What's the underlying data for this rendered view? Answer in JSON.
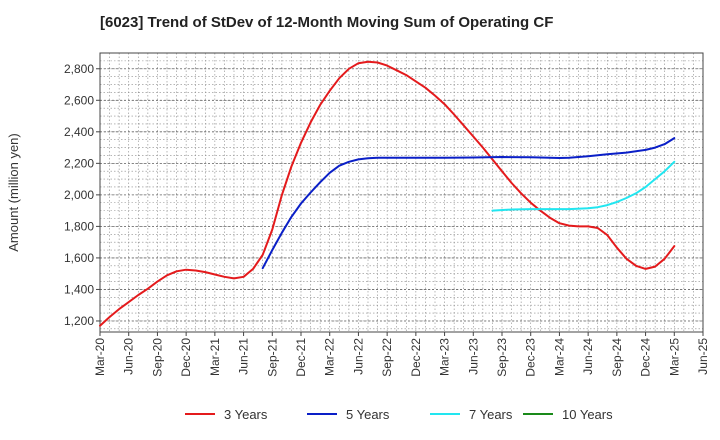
{
  "chart_data": {
    "type": "line",
    "title": "[6023]  Trend of StDev of 12-Month Moving Sum of Operating CF",
    "xlabel": "",
    "ylabel": "Amount (million yen)",
    "ylim": [
      1130,
      2900
    ],
    "yticks": [
      1200,
      1400,
      1600,
      1800,
      2000,
      2200,
      2400,
      2600,
      2800
    ],
    "ytick_labels": [
      "1,200",
      "1,400",
      "1,600",
      "1,800",
      "2,000",
      "2,200",
      "2,400",
      "2,600",
      "2,800"
    ],
    "x_categories": [
      "Mar-20",
      "Jun-20",
      "Sep-20",
      "Dec-20",
      "Mar-21",
      "Jun-21",
      "Sep-21",
      "Dec-21",
      "Mar-22",
      "Jun-22",
      "Sep-22",
      "Dec-22",
      "Mar-23",
      "Jun-23",
      "Sep-23",
      "Dec-23",
      "Mar-24",
      "Jun-24",
      "Sep-24",
      "Dec-24",
      "Mar-25",
      "Jun-25"
    ],
    "grid": true,
    "legend_position": "bottom",
    "series": [
      {
        "name": "3 Years",
        "color": "#e41a1c",
        "points": [
          [
            "Mar-20",
            1170
          ],
          [
            "Apr-20",
            1225
          ],
          [
            "May-20",
            1275
          ],
          [
            "Jun-20",
            1320
          ],
          [
            "Jul-20",
            1365
          ],
          [
            "Aug-20",
            1405
          ],
          [
            "Sep-20",
            1450
          ],
          [
            "Oct-20",
            1490
          ],
          [
            "Nov-20",
            1515
          ],
          [
            "Dec-20",
            1525
          ],
          [
            "Jan-21",
            1520
          ],
          [
            "Feb-21",
            1510
          ],
          [
            "Mar-21",
            1495
          ],
          [
            "Apr-21",
            1480
          ],
          [
            "May-21",
            1470
          ],
          [
            "Jun-21",
            1480
          ],
          [
            "Jul-21",
            1530
          ],
          [
            "Aug-21",
            1620
          ],
          [
            "Sep-21",
            1780
          ],
          [
            "Oct-21",
            2000
          ],
          [
            "Nov-21",
            2180
          ],
          [
            "Dec-21",
            2330
          ],
          [
            "Jan-22",
            2460
          ],
          [
            "Feb-22",
            2570
          ],
          [
            "Mar-22",
            2660
          ],
          [
            "Apr-22",
            2740
          ],
          [
            "May-22",
            2800
          ],
          [
            "Jun-22",
            2835
          ],
          [
            "Jul-22",
            2845
          ],
          [
            "Aug-22",
            2840
          ],
          [
            "Sep-22",
            2820
          ],
          [
            "Oct-22",
            2790
          ],
          [
            "Nov-22",
            2760
          ],
          [
            "Dec-22",
            2720
          ],
          [
            "Jan-23",
            2680
          ],
          [
            "Feb-23",
            2630
          ],
          [
            "Mar-23",
            2575
          ],
          [
            "Apr-23",
            2510
          ],
          [
            "May-23",
            2440
          ],
          [
            "Jun-23",
            2370
          ],
          [
            "Jul-23",
            2300
          ],
          [
            "Aug-23",
            2225
          ],
          [
            "Sep-23",
            2150
          ],
          [
            "Oct-23",
            2075
          ],
          [
            "Nov-23",
            2010
          ],
          [
            "Dec-23",
            1950
          ],
          [
            "Jan-24",
            1900
          ],
          [
            "Feb-24",
            1855
          ],
          [
            "Mar-24",
            1820
          ],
          [
            "Apr-24",
            1805
          ],
          [
            "May-24",
            1800
          ],
          [
            "Jun-24",
            1800
          ],
          [
            "Jul-24",
            1790
          ],
          [
            "Aug-24",
            1745
          ],
          [
            "Sep-24",
            1665
          ],
          [
            "Oct-24",
            1595
          ],
          [
            "Nov-24",
            1550
          ],
          [
            "Dec-24",
            1530
          ],
          [
            "Jan-25",
            1545
          ],
          [
            "Feb-25",
            1595
          ],
          [
            "Mar-25",
            1675
          ]
        ]
      },
      {
        "name": "5 Years",
        "color": "#0a1fc7",
        "points": [
          [
            "Aug-21",
            1535
          ],
          [
            "Sep-21",
            1650
          ],
          [
            "Oct-21",
            1760
          ],
          [
            "Nov-21",
            1860
          ],
          [
            "Dec-21",
            1945
          ],
          [
            "Jan-22",
            2015
          ],
          [
            "Feb-22",
            2080
          ],
          [
            "Mar-22",
            2140
          ],
          [
            "Apr-22",
            2185
          ],
          [
            "May-22",
            2210
          ],
          [
            "Jun-22",
            2225
          ],
          [
            "Jul-22",
            2232
          ],
          [
            "Aug-22",
            2235
          ],
          [
            "Sep-22",
            2235
          ],
          [
            "Dec-22",
            2236
          ],
          [
            "Mar-23",
            2236
          ],
          [
            "Jun-23",
            2237
          ],
          [
            "Sep-23",
            2240
          ],
          [
            "Dec-23",
            2238
          ],
          [
            "Mar-24",
            2234
          ],
          [
            "Apr-24",
            2236
          ],
          [
            "Jun-24",
            2245
          ],
          [
            "Aug-24",
            2258
          ],
          [
            "Oct-24",
            2268
          ],
          [
            "Dec-24",
            2285
          ],
          [
            "Jan-25",
            2300
          ],
          [
            "Feb-25",
            2322
          ],
          [
            "Mar-25",
            2360
          ]
        ]
      },
      {
        "name": "7 Years",
        "color": "#22e6f0",
        "points": [
          [
            "Aug-23",
            1900
          ],
          [
            "Oct-23",
            1907
          ],
          [
            "Dec-23",
            1910
          ],
          [
            "Feb-24",
            1910
          ],
          [
            "Apr-24",
            1910
          ],
          [
            "Jun-24",
            1915
          ],
          [
            "Jul-24",
            1922
          ],
          [
            "Aug-24",
            1935
          ],
          [
            "Sep-24",
            1955
          ],
          [
            "Oct-24",
            1980
          ],
          [
            "Nov-24",
            2010
          ],
          [
            "Dec-24",
            2050
          ],
          [
            "Jan-25",
            2100
          ],
          [
            "Feb-25",
            2150
          ],
          [
            "Mar-25",
            2210
          ]
        ]
      },
      {
        "name": "10 Years",
        "color": "#1a8a1a",
        "points": []
      }
    ]
  }
}
